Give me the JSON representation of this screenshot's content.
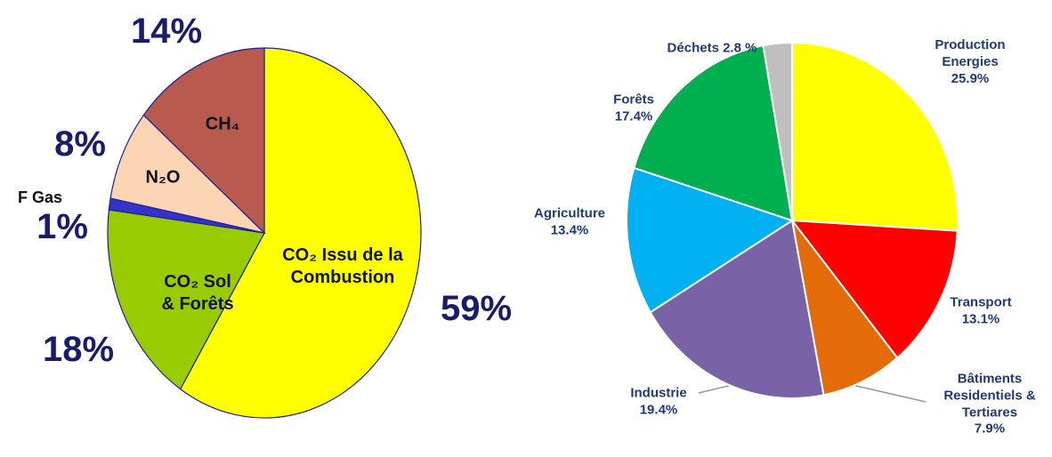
{
  "chart_data": [
    {
      "type": "pie",
      "categories": [
        "CO₂ Issu de la Combustion",
        "CO₂ Sol & Forêts",
        "F Gas",
        "N₂O",
        "CH₄"
      ],
      "values": [
        59,
        18,
        1,
        8,
        14
      ],
      "value_labels": [
        "59%",
        "18%",
        "1%",
        "8%",
        "14%"
      ],
      "colors": [
        "#ffff00",
        "#99cc00",
        "#3333cc",
        "#fcd5b4",
        "#b95a4f"
      ]
    },
    {
      "type": "pie",
      "categories": [
        "Production Energies",
        "Transport",
        "Bâtiments Residentiels & Tertiares",
        "Industrie",
        "Agriculture",
        "Forêts",
        "Déchets"
      ],
      "values": [
        25.9,
        13.1,
        7.9,
        19.4,
        13.4,
        17.4,
        2.8
      ],
      "value_labels": [
        "25.9%",
        "13.1%",
        "7.9%",
        "19.4%",
        "13.4%",
        "17.4%",
        "2.8 %"
      ],
      "colors": [
        "#ffff00",
        "#ff0000",
        "#e36c09",
        "#7a62a6",
        "#00b0f0",
        "#00b050",
        "#bfbfbf"
      ]
    }
  ]
}
